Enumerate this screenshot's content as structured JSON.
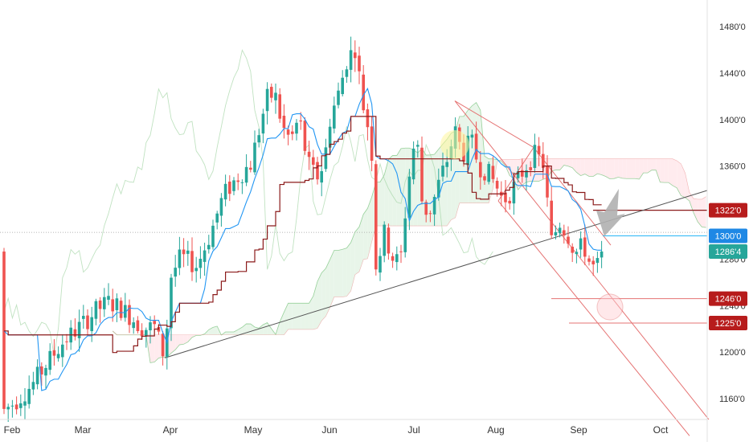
{
  "chart_data": {
    "type": "candlestick",
    "x_axis_labels": [
      "Feb",
      "Mar",
      "Apr",
      "May",
      "Jun",
      "Jul",
      "Aug",
      "Sep",
      "Oct"
    ],
    "y_axis_labels": [
      "1480'0",
      "1440'0",
      "1400'0",
      "1360'0",
      "1200'0",
      "1160'0"
    ],
    "ylim": [
      1130,
      1500
    ],
    "price_tags": [
      {
        "label": "1322'0",
        "value": 1322,
        "color": "#b71c1c"
      },
      {
        "label": "1300'0",
        "value": 1300,
        "color": "#1e88e5"
      },
      {
        "label": "1286'4",
        "value": 1286.5,
        "color": "#26a69a"
      },
      {
        "label": "1246'0",
        "value": 1246,
        "color": "#b71c1c"
      },
      {
        "label": "1225'0",
        "value": 1225,
        "color": "#b71c1c"
      }
    ],
    "partially_visible_label": "1280'0",
    "partially_visible_label_2": "1240'0",
    "colors": {
      "up": "#26a69a",
      "down": "#ef5350",
      "conversion_line": "#2196f3",
      "base_line": "#8b1a1a",
      "lagging_span": "#a5d6a7",
      "cloud_bull": "#e8f5e9",
      "cloud_bear": "#ffebee",
      "trendline": "#555555",
      "channel": "#e57373",
      "price_line_dotted": "#9e9e9e"
    },
    "last_close": 1286.5
  }
}
